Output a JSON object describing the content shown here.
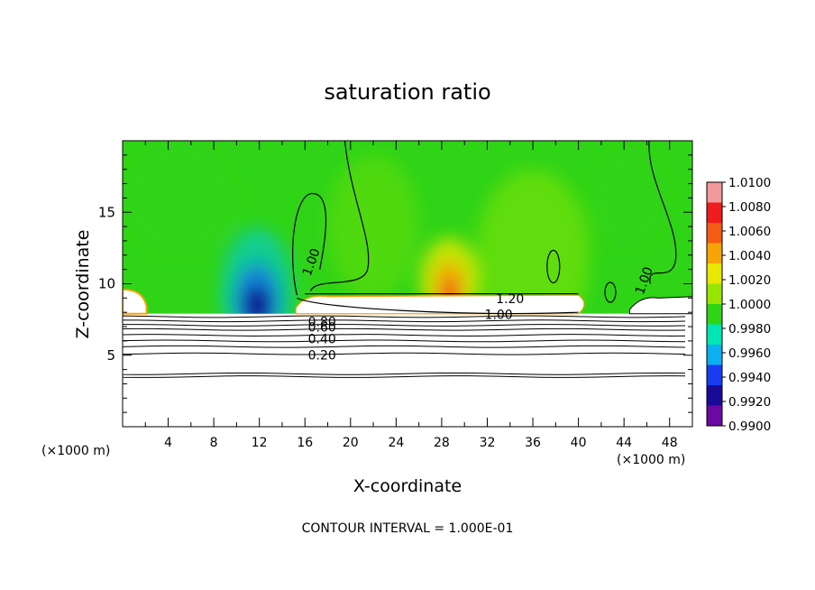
{
  "chart_data": {
    "type": "heatmap",
    "title": "saturation ratio",
    "xlabel": "X-coordinate",
    "ylabel": "Z-coordinate",
    "x_unit_label": "(×1000 m)",
    "xlim": [
      0,
      50
    ],
    "ylim": [
      0,
      20
    ],
    "x_ticks": [
      4,
      8,
      12,
      16,
      20,
      24,
      28,
      32,
      36,
      40,
      44,
      48
    ],
    "y_ticks": [
      5,
      10,
      15
    ],
    "footnote": "CONTOUR INTERVAL = 1.000E-01",
    "colorbar": {
      "labels": [
        "1.0100",
        "1.0080",
        "1.0060",
        "1.0040",
        "1.0020",
        "1.0000",
        "0.9980",
        "0.9960",
        "0.9940",
        "0.9920",
        "0.9900"
      ],
      "colors": [
        "#f19a9a",
        "#ee1c1c",
        "#f25c14",
        "#f7a406",
        "#e8e800",
        "#98e600",
        "#2fd416",
        "#00e6b4",
        "#0ab0f0",
        "#1a3cf0",
        "#1a0a9a",
        "#6a0aa0"
      ]
    },
    "contour_labels": [
      {
        "text": "1.00",
        "x": 16.6,
        "y": 11.5
      },
      {
        "text": "1.20",
        "x": 34.0,
        "y": 8.9
      },
      {
        "text": "1.00",
        "x": 33.0,
        "y": 7.8
      },
      {
        "text": "1.00",
        "x": 45.8,
        "y": 10.2
      },
      {
        "text": "0.80",
        "x": 17.5,
        "y": 7.3
      },
      {
        "text": "0.60",
        "x": 17.5,
        "y": 6.9
      },
      {
        "text": "0.40",
        "x": 17.5,
        "y": 6.1
      },
      {
        "text": "0.20",
        "x": 17.5,
        "y": 4.95
      }
    ],
    "horizontal_contours_y": [
      3.5,
      3.7,
      5.1,
      5.6,
      6.0,
      6.4,
      6.8,
      7.1,
      7.4,
      7.7
    ],
    "blobs": [
      {
        "x": 11.8,
        "y": 9.4,
        "rx": 3.2,
        "ry": 4.5,
        "color": "#00c8e0",
        "opacity": 0.6
      },
      {
        "x": 11.8,
        "y": 8.9,
        "rx": 2.0,
        "ry": 2.6,
        "color": "#0a78e8",
        "opacity": 0.8
      },
      {
        "x": 11.8,
        "y": 8.5,
        "rx": 1.2,
        "ry": 1.4,
        "color": "#10108c",
        "opacity": 1.0
      },
      {
        "x": 28.7,
        "y": 10.2,
        "rx": 2.6,
        "ry": 3.0,
        "color": "#e8e800",
        "opacity": 0.8
      },
      {
        "x": 28.7,
        "y": 9.8,
        "rx": 1.3,
        "ry": 1.8,
        "color": "#f7a406",
        "opacity": 0.9
      },
      {
        "x": 28.7,
        "y": 9.4,
        "rx": 0.6,
        "ry": 0.9,
        "color": "#ee1c1c",
        "opacity": 1.0
      },
      {
        "x": 36.0,
        "y": 12.0,
        "rx": 5.0,
        "ry": 6.0,
        "color": "#98e600",
        "opacity": 0.45
      },
      {
        "x": 22.0,
        "y": 14.0,
        "rx": 4.0,
        "ry": 5.0,
        "color": "#98e600",
        "opacity": 0.3
      },
      {
        "x": 5.0,
        "y": 16.0,
        "rx": 5.0,
        "ry": 4.0,
        "color": "#2fd416",
        "opacity": 0.5
      },
      {
        "x": 44.5,
        "y": 16.0,
        "rx": 3.5,
        "ry": 3.5,
        "color": "#2fd416",
        "opacity": 0.5
      }
    ],
    "grid": false
  }
}
